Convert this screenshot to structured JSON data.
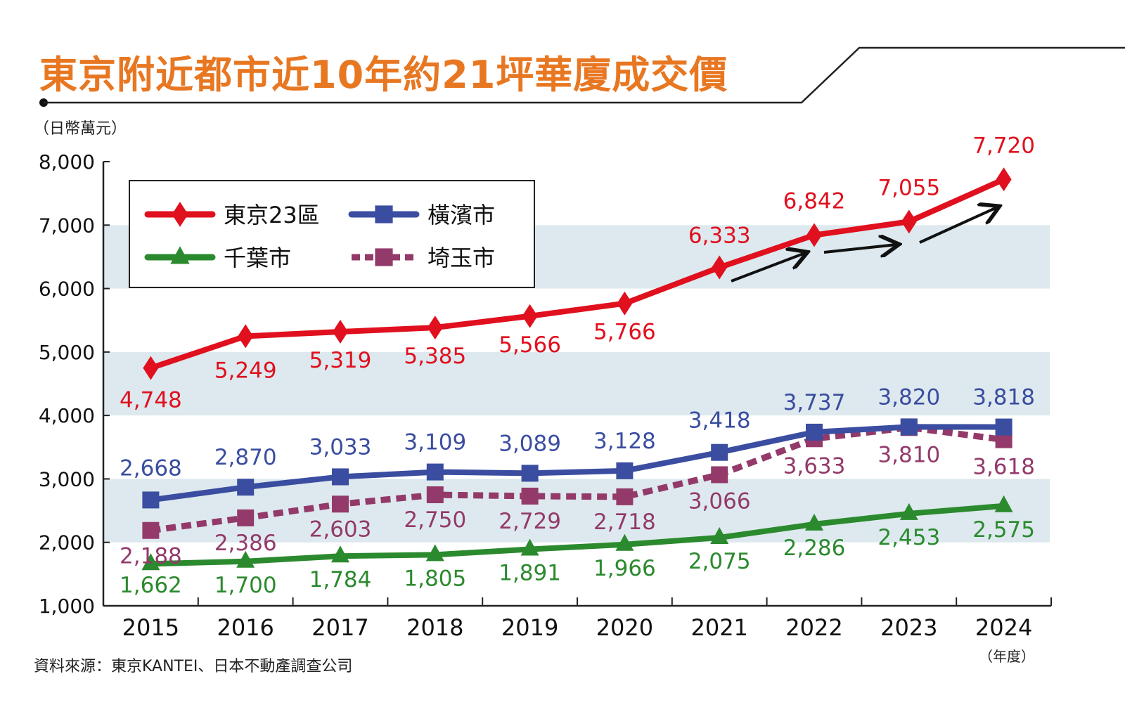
{
  "title": "東京附近都市近10年約21坪華廈成交價",
  "unit_label": "（日幣萬元）",
  "source_note": "資料來源：東京KANTEI、日本不動產調查公司",
  "year_unit": "（年度）",
  "colors": {
    "title": "#e87722",
    "tokyo": "#e0101e",
    "yokohama": "#3a4da0",
    "chiba": "#2b8a2e",
    "saitama": "#933a6a",
    "band": "#dde9ee",
    "arrow": "#111111"
  },
  "chart_data": {
    "type": "line",
    "title": "東京附近都市近10年約21坪華廈成交價",
    "xlabel": "（年度）",
    "ylabel": "（日幣萬元）",
    "x": [
      "2015",
      "2016",
      "2017",
      "2018",
      "2019",
      "2020",
      "2021",
      "2022",
      "2023",
      "2024"
    ],
    "ylim": [
      1000,
      8000
    ],
    "yticks": [
      1000,
      2000,
      3000,
      4000,
      5000,
      6000,
      7000,
      8000
    ],
    "ytick_labels": [
      "1,000",
      "2,000",
      "3,000",
      "4,000",
      "5,000",
      "6,000",
      "7,000",
      "8,000"
    ],
    "grid": "alternating shaded bands (2000-3000, 4000-5000, 6000-7000)",
    "legend": "top-left",
    "annotations": [
      "black rising arrows along Tokyo 23 wards 2021-2024"
    ],
    "series": [
      {
        "name": "東京23區",
        "marker": "diamond",
        "line": "solid",
        "color_key": "tokyo",
        "values": [
          4748,
          5249,
          5319,
          5385,
          5566,
          5766,
          6333,
          6842,
          7055,
          7720
        ],
        "labels": [
          "4,748",
          "5,249",
          "5,319",
          "5,385",
          "5,566",
          "5,766",
          "6,333",
          "6,842",
          "7,055",
          "7,720"
        ]
      },
      {
        "name": "橫濱市",
        "marker": "square",
        "line": "solid",
        "color_key": "yokohama",
        "values": [
          2668,
          2870,
          3033,
          3109,
          3089,
          3128,
          3418,
          3737,
          3820,
          3818
        ],
        "labels": [
          "2,668",
          "2,870",
          "3,033",
          "3,109",
          "3,089",
          "3,128",
          "3,418",
          "3,737",
          "3,820",
          "3,818"
        ]
      },
      {
        "name": "千葉市",
        "marker": "triangle",
        "line": "solid",
        "color_key": "chiba",
        "values": [
          1662,
          1700,
          1784,
          1805,
          1891,
          1966,
          2075,
          2286,
          2453,
          2575
        ],
        "labels": [
          "1,662",
          "1,700",
          "1,784",
          "1,805",
          "1,891",
          "1,966",
          "2,075",
          "2,286",
          "2,453",
          "2,575"
        ]
      },
      {
        "name": "埼玉市",
        "marker": "square",
        "line": "dashed",
        "color_key": "saitama",
        "values": [
          2188,
          2386,
          2603,
          2750,
          2729,
          2718,
          3066,
          3633,
          3810,
          3618
        ],
        "labels": [
          "2,188",
          "2,386",
          "2,603",
          "2,750",
          "2,729",
          "2,718",
          "3,066",
          "3,633",
          "3,810",
          "3,618"
        ]
      }
    ]
  }
}
